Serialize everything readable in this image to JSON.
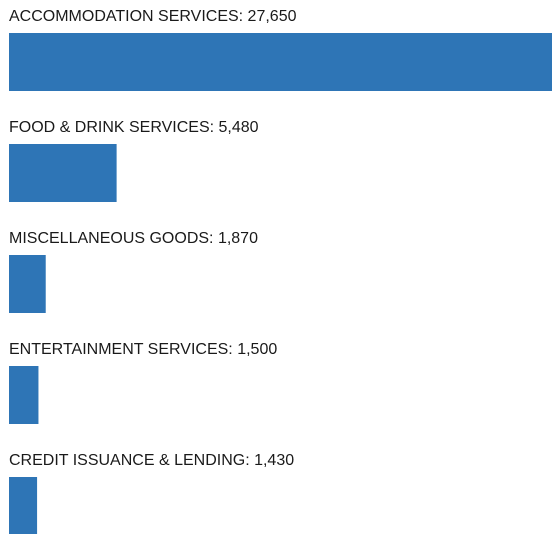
{
  "chart_data": {
    "type": "bar",
    "orientation": "horizontal",
    "categories": [
      "ACCOMMODATION SERVICES: 27,650",
      "FOOD & DRINK SERVICES: 5,480",
      "MISCELLANEOUS GOODS: 1,870",
      "ENTERTAINMENT SERVICES: 1,500",
      "CREDIT ISSUANCE & LENDING: 1,430"
    ],
    "values": [
      27650,
      5480,
      1870,
      1500,
      1430
    ],
    "color": "#2e75b6",
    "xlim": [
      0,
      27650
    ]
  }
}
